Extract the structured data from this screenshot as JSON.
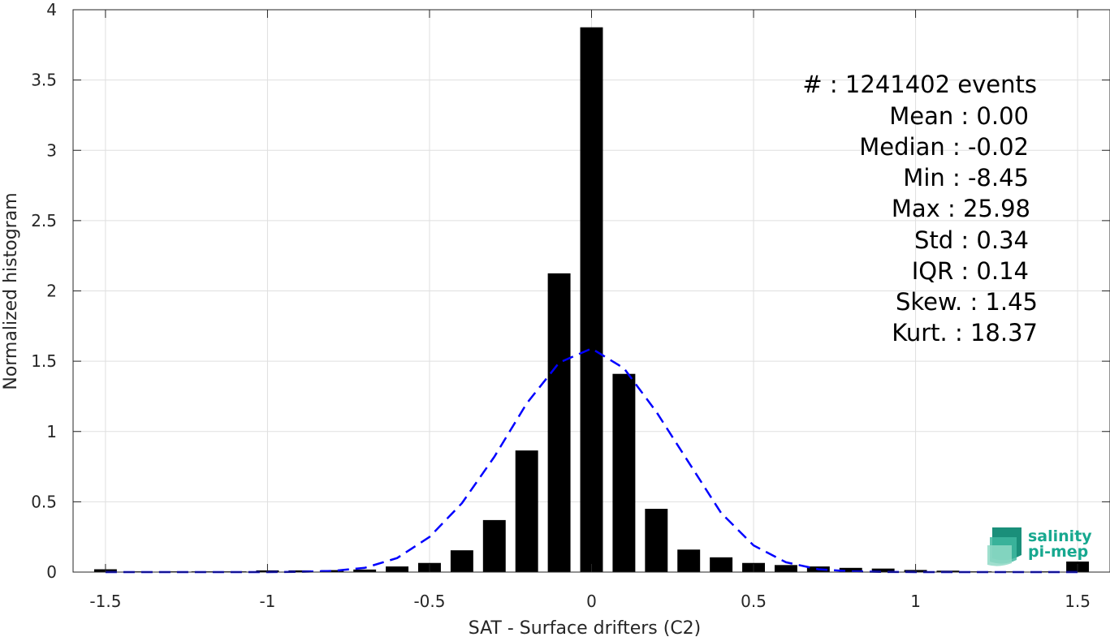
{
  "chart_data": {
    "type": "bar",
    "xlabel": "SAT - Surface drifters (C2)",
    "ylabel": "Normalized histogram",
    "xlim": [
      -1.6,
      1.6
    ],
    "ylim": [
      0,
      4
    ],
    "xticks": [
      -1.5,
      -1,
      -0.5,
      0,
      0.5,
      1,
      1.5
    ],
    "xtick_labels": [
      "-1.5",
      "-1",
      "-0.5",
      "0",
      "0.5",
      "1",
      "1.5"
    ],
    "yticks": [
      0,
      0.5,
      1,
      1.5,
      2,
      2.5,
      3,
      3.5,
      4
    ],
    "ytick_labels": [
      "0",
      "0.5",
      "1",
      "1.5",
      "2",
      "2.5",
      "3",
      "3.5",
      "4"
    ],
    "grid": true,
    "bar_width": 0.07,
    "histogram": {
      "bin_centers": [
        -1.5,
        -1.4,
        -1.3,
        -1.2,
        -1.1,
        -1.0,
        -0.9,
        -0.8,
        -0.7,
        -0.6,
        -0.5,
        -0.4,
        -0.3,
        -0.2,
        -0.1,
        0.0,
        0.1,
        0.2,
        0.3,
        0.4,
        0.5,
        0.6,
        0.7,
        0.8,
        0.9,
        1.0,
        1.1,
        1.2,
        1.3,
        1.4,
        1.5
      ],
      "values": [
        0.02,
        0.005,
        0.005,
        0.005,
        0.005,
        0.012,
        0.012,
        0.014,
        0.018,
        0.04,
        0.065,
        0.155,
        0.37,
        0.865,
        2.125,
        3.875,
        1.41,
        0.45,
        0.16,
        0.105,
        0.065,
        0.05,
        0.04,
        0.03,
        0.025,
        0.015,
        0.01,
        0.005,
        0.005,
        0.005,
        0.075
      ],
      "color": "#000000"
    },
    "fit_curve": {
      "style": "dashed",
      "color": "#0000ff",
      "x": [
        -1.5,
        -1.4,
        -1.3,
        -1.2,
        -1.1,
        -1.0,
        -0.9,
        -0.8,
        -0.7,
        -0.6,
        -0.5,
        -0.4,
        -0.3,
        -0.2,
        -0.1,
        0.0,
        0.1,
        0.2,
        0.3,
        0.4,
        0.5,
        0.6,
        0.7,
        0.8,
        0.9,
        1.0,
        1.1,
        1.2,
        1.3,
        1.4,
        1.5
      ],
      "y": [
        0.0,
        0.0,
        0.0,
        0.0,
        0.0,
        0.0,
        0.002,
        0.008,
        0.03,
        0.1,
        0.25,
        0.49,
        0.82,
        1.2,
        1.49,
        1.59,
        1.45,
        1.14,
        0.78,
        0.42,
        0.19,
        0.07,
        0.02,
        0.005,
        0.001,
        0.0,
        0.0,
        0.0,
        0.0,
        0.0,
        0.0
      ]
    }
  },
  "stats": {
    "events_label": "#  : 1241402 events",
    "lines": [
      "Mean : 0.00",
      "Median : -0.02",
      "Min : -8.45",
      "Max : 25.98",
      "Std : 0.34",
      "IQR : 0.14",
      "Skew. : 1.45",
      "Kurt. : 18.37"
    ]
  },
  "logo": {
    "line1": "salinity",
    "line2": "pi-mep",
    "accent_color": "#17a88f"
  }
}
